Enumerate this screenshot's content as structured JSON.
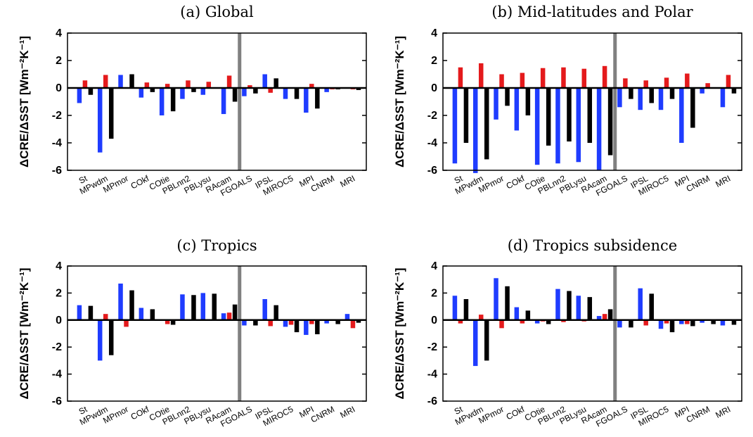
{
  "chart_data": [
    {
      "type": "bar",
      "title": "(a) Global",
      "ylabel": "ΔCRE/ΔSST [Wm⁻²K⁻¹]",
      "ylim": [
        -6,
        4
      ],
      "yticks": [
        4,
        2,
        0,
        -2,
        -4,
        -6
      ],
      "categories": [
        "St",
        "MPwdm",
        "MPmor",
        "COkf",
        "COtie",
        "PBLnn2",
        "PBLysu",
        "RAcam",
        "FGOALS",
        "IPSL",
        "MIROC5",
        "MPI",
        "CNRM",
        "MRI"
      ],
      "divider_after": "RAcam",
      "series": [
        {
          "color": "#1f3cff",
          "values": [
            -1.1,
            -4.7,
            0.95,
            -0.7,
            -2.0,
            -0.8,
            -0.5,
            -1.9,
            -0.6,
            1.0,
            -0.8,
            -1.8,
            -0.3,
            -0.05
          ]
        },
        {
          "color": "#e41a1c",
          "values": [
            0.55,
            0.95,
            0.0,
            0.4,
            0.3,
            0.55,
            0.45,
            0.9,
            0.2,
            -0.35,
            -0.05,
            0.3,
            -0.1,
            -0.1
          ]
        },
        {
          "color": "#000000",
          "values": [
            -0.5,
            -3.7,
            1.0,
            -0.3,
            -1.7,
            -0.3,
            0.0,
            -1.0,
            -0.4,
            0.7,
            -0.8,
            -1.5,
            -0.1,
            -0.15
          ]
        }
      ]
    },
    {
      "type": "bar",
      "title": "(b) Mid-latitudes and Polar",
      "ylabel": "ΔCRE/ΔSST [Wm⁻²K⁻¹]",
      "ylim": [
        -6,
        4
      ],
      "yticks": [
        4,
        2,
        0,
        -2,
        -4,
        -6
      ],
      "categories": [
        "St",
        "MPwdm",
        "MPmor",
        "COkf",
        "COtie",
        "PBLnn2",
        "PBLysu",
        "RAcam",
        "FGOALS",
        "IPSL",
        "MIROC5",
        "MPI",
        "CNRM",
        "MRI"
      ],
      "divider_after": "RAcam",
      "series": [
        {
          "color": "#1f3cff",
          "values": [
            -5.5,
            -6.2,
            -2.3,
            -3.1,
            -5.6,
            -5.5,
            -5.4,
            -6.0,
            -1.4,
            -1.6,
            -1.6,
            -4.0,
            -0.4,
            -1.4
          ]
        },
        {
          "color": "#e41a1c",
          "values": [
            1.5,
            1.8,
            1.0,
            1.1,
            1.45,
            1.5,
            1.4,
            1.6,
            0.7,
            0.55,
            0.75,
            1.05,
            0.35,
            0.95
          ]
        },
        {
          "color": "#000000",
          "values": [
            -4.0,
            -5.2,
            -1.3,
            -2.0,
            -4.2,
            -3.9,
            -4.0,
            -4.9,
            -0.8,
            -1.1,
            -0.8,
            -2.9,
            0.0,
            -0.4
          ]
        }
      ]
    },
    {
      "type": "bar",
      "title": "(c) Tropics",
      "ylabel": "ΔCRE/ΔSST [Wm⁻²K⁻¹]",
      "ylim": [
        -6,
        4
      ],
      "yticks": [
        4,
        2,
        0,
        -2,
        -4,
        -6
      ],
      "categories": [
        "St",
        "MPwdm",
        "MPmor",
        "COkf",
        "COtie",
        "PBLnn2",
        "PBLysu",
        "RAcam",
        "FGOALS",
        "IPSL",
        "MIROC5",
        "MPI",
        "CNRM",
        "MRI"
      ],
      "divider_after": "RAcam",
      "series": [
        {
          "color": "#1f3cff",
          "values": [
            1.1,
            -3.0,
            2.7,
            0.9,
            0.0,
            1.9,
            2.0,
            0.5,
            -0.4,
            1.55,
            -0.5,
            -1.1,
            -0.25,
            0.45
          ]
        },
        {
          "color": "#e41a1c",
          "values": [
            0.0,
            0.45,
            -0.5,
            0.0,
            -0.3,
            0.0,
            -0.05,
            0.55,
            0.0,
            -0.45,
            -0.35,
            -0.3,
            0.0,
            -0.6
          ]
        },
        {
          "color": "#000000",
          "values": [
            1.05,
            -2.6,
            2.2,
            0.8,
            -0.35,
            1.85,
            1.95,
            1.15,
            -0.4,
            1.1,
            -0.9,
            -1.05,
            -0.3,
            -0.2
          ]
        }
      ]
    },
    {
      "type": "bar",
      "title": "(d) Tropics subsidence",
      "ylabel": "ΔCRE/ΔSST [Wm⁻²K⁻¹]",
      "ylim": [
        -6,
        4
      ],
      "yticks": [
        4,
        2,
        0,
        -2,
        -4,
        -6
      ],
      "categories": [
        "St",
        "MPwdm",
        "MPmor",
        "COkf",
        "COtie",
        "PBLnn2",
        "PBLysu",
        "RAcam",
        "FGOALS",
        "IPSL",
        "MIROC5",
        "MPI",
        "CNRM",
        "MRI"
      ],
      "divider_after": "RAcam",
      "series": [
        {
          "color": "#1f3cff",
          "values": [
            1.8,
            -3.4,
            3.1,
            0.95,
            -0.25,
            2.3,
            1.8,
            0.3,
            -0.55,
            2.35,
            -0.65,
            -0.3,
            -0.2,
            -0.4
          ]
        },
        {
          "color": "#e41a1c",
          "values": [
            -0.25,
            0.4,
            -0.6,
            -0.25,
            -0.1,
            -0.15,
            -0.1,
            0.45,
            0.0,
            -0.4,
            -0.25,
            -0.3,
            0.0,
            -0.05
          ]
        },
        {
          "color": "#000000",
          "values": [
            1.55,
            -3.0,
            2.5,
            0.7,
            -0.3,
            2.15,
            1.7,
            0.8,
            -0.55,
            1.95,
            -0.9,
            -0.45,
            -0.3,
            -0.35
          ]
        }
      ]
    }
  ],
  "colors": {
    "divider": "#808080",
    "axis": "#000000"
  }
}
